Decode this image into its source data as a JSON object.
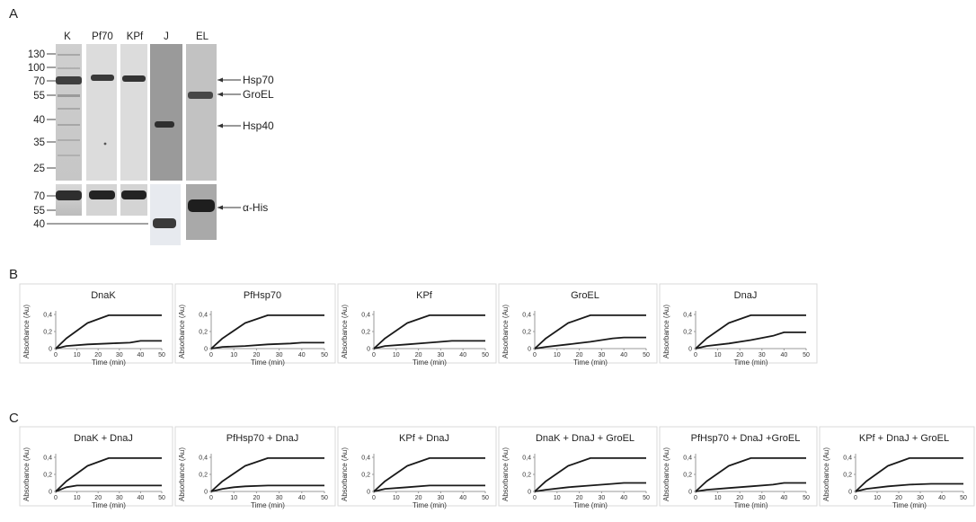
{
  "panels": {
    "a": "A",
    "b": "B",
    "c": "C"
  },
  "gel": {
    "lanes": [
      "K",
      "Pf70",
      "KPf",
      "J",
      "EL"
    ],
    "mw_markers": [
      "130",
      "100",
      "70",
      "55",
      "40",
      "35",
      "25"
    ],
    "blot_markers": [
      "70",
      "55",
      "40"
    ],
    "annotations": [
      "Hsp70",
      "GroEL",
      "Hsp40",
      "α-His"
    ]
  },
  "chart_data": [
    {
      "type": "line",
      "title": "DnaK",
      "xlabel": "Time (min)",
      "ylabel": "Absorbance (Au)",
      "xlim": [
        0,
        50
      ],
      "ylim": [
        0,
        0.4
      ],
      "xticks": [
        "0",
        "10",
        "20",
        "30",
        "40",
        "50"
      ],
      "yticks": [
        "0",
        "0,2",
        "0,4"
      ],
      "series": [
        {
          "x": [
            0,
            5,
            15,
            25,
            35,
            40,
            50
          ],
          "y": [
            0,
            0.12,
            0.3,
            0.39,
            0.39,
            0.39,
            0.39
          ]
        },
        {
          "x": [
            0,
            5,
            15,
            25,
            35,
            40,
            50
          ],
          "y": [
            0,
            0.03,
            0.05,
            0.06,
            0.07,
            0.09,
            0.09
          ]
        }
      ]
    },
    {
      "type": "line",
      "title": "PfHsp70",
      "xlabel": "Time (min)",
      "ylabel": "Absorbance (Au)",
      "xlim": [
        0,
        50
      ],
      "ylim": [
        0,
        0.4
      ],
      "xticks": [
        "0",
        "10",
        "20",
        "30",
        "40",
        "50"
      ],
      "yticks": [
        "0",
        "0,2",
        "0,4"
      ],
      "series": [
        {
          "x": [
            0,
            5,
            15,
            25,
            35,
            40,
            50
          ],
          "y": [
            0,
            0.12,
            0.3,
            0.39,
            0.39,
            0.39,
            0.39
          ]
        },
        {
          "x": [
            0,
            5,
            15,
            25,
            35,
            40,
            50
          ],
          "y": [
            0,
            0.02,
            0.03,
            0.05,
            0.06,
            0.07,
            0.07
          ]
        }
      ]
    },
    {
      "type": "line",
      "title": "KPf",
      "xlabel": "Time (min)",
      "ylabel": "Absorbance (Au)",
      "xlim": [
        0,
        50
      ],
      "ylim": [
        0,
        0.4
      ],
      "xticks": [
        "0",
        "10",
        "20",
        "30",
        "40",
        "50"
      ],
      "yticks": [
        "0",
        "0,2",
        "0,4"
      ],
      "series": [
        {
          "x": [
            0,
            5,
            15,
            25,
            35,
            40,
            50
          ],
          "y": [
            0,
            0.12,
            0.3,
            0.39,
            0.39,
            0.39,
            0.39
          ]
        },
        {
          "x": [
            0,
            5,
            15,
            25,
            35,
            40,
            50
          ],
          "y": [
            0,
            0.03,
            0.05,
            0.07,
            0.09,
            0.09,
            0.09
          ]
        }
      ]
    },
    {
      "type": "line",
      "title": "GroEL",
      "xlabel": "Time (min)",
      "ylabel": "Absorbance (Au)",
      "xlim": [
        0,
        50
      ],
      "ylim": [
        0,
        0.4
      ],
      "xticks": [
        "0",
        "10",
        "20",
        "30",
        "40",
        "50"
      ],
      "yticks": [
        "0",
        "0,2",
        "0,4"
      ],
      "series": [
        {
          "x": [
            0,
            5,
            15,
            25,
            35,
            40,
            50
          ],
          "y": [
            0,
            0.12,
            0.3,
            0.39,
            0.39,
            0.39,
            0.39
          ]
        },
        {
          "x": [
            0,
            5,
            15,
            25,
            35,
            40,
            50
          ],
          "y": [
            0,
            0.02,
            0.05,
            0.08,
            0.12,
            0.13,
            0.13
          ]
        }
      ]
    },
    {
      "type": "line",
      "title": "DnaJ",
      "xlabel": "Time (min)",
      "ylabel": "Absorbance (Au)",
      "xlim": [
        0,
        50
      ],
      "ylim": [
        0,
        0.4
      ],
      "xticks": [
        "0",
        "10",
        "20",
        "30",
        "40",
        "50"
      ],
      "yticks": [
        "0",
        "0,2",
        "0,4"
      ],
      "series": [
        {
          "x": [
            0,
            5,
            15,
            25,
            35,
            40,
            50
          ],
          "y": [
            0,
            0.12,
            0.3,
            0.39,
            0.39,
            0.39,
            0.39
          ]
        },
        {
          "x": [
            0,
            5,
            15,
            25,
            35,
            40,
            50
          ],
          "y": [
            0,
            0.03,
            0.06,
            0.1,
            0.15,
            0.19,
            0.19
          ]
        }
      ]
    },
    {
      "type": "line",
      "title": "DnaK + DnaJ",
      "xlabel": "Time (min)",
      "ylabel": "Absorbance (Au)",
      "xlim": [
        0,
        50
      ],
      "ylim": [
        0,
        0.4
      ],
      "xticks": [
        "0",
        "10",
        "20",
        "30",
        "40",
        "50"
      ],
      "yticks": [
        "0",
        "0,2",
        "0,4"
      ],
      "series": [
        {
          "x": [
            0,
            5,
            15,
            25,
            35,
            40,
            50
          ],
          "y": [
            0,
            0.12,
            0.3,
            0.39,
            0.39,
            0.39,
            0.39
          ]
        },
        {
          "x": [
            0,
            5,
            10,
            15,
            25,
            35,
            40,
            50
          ],
          "y": [
            0,
            0.05,
            0.07,
            0.07,
            0.07,
            0.07,
            0.07,
            0.07
          ]
        }
      ]
    },
    {
      "type": "line",
      "title": "PfHsp70 + DnaJ",
      "xlabel": "Time (min)",
      "ylabel": "Absorbance (Au)",
      "xlim": [
        0,
        50
      ],
      "ylim": [
        0,
        0.4
      ],
      "xticks": [
        "0",
        "10",
        "20",
        "30",
        "40",
        "50"
      ],
      "yticks": [
        "0",
        "0,2",
        "0,4"
      ],
      "series": [
        {
          "x": [
            0,
            5,
            15,
            25,
            35,
            40,
            50
          ],
          "y": [
            0,
            0.12,
            0.3,
            0.39,
            0.39,
            0.39,
            0.39
          ]
        },
        {
          "x": [
            0,
            5,
            10,
            15,
            25,
            35,
            40,
            50
          ],
          "y": [
            0,
            0.03,
            0.05,
            0.06,
            0.07,
            0.07,
            0.07,
            0.07
          ]
        }
      ]
    },
    {
      "type": "line",
      "title": "KPf + DnaJ",
      "xlabel": "Time (min)",
      "ylabel": "Absorbance (Au)",
      "xlim": [
        0,
        50
      ],
      "ylim": [
        0,
        0.4
      ],
      "xticks": [
        "0",
        "10",
        "20",
        "30",
        "40",
        "50"
      ],
      "yticks": [
        "0",
        "0,2",
        "0,4"
      ],
      "series": [
        {
          "x": [
            0,
            5,
            15,
            25,
            35,
            40,
            50
          ],
          "y": [
            0,
            0.12,
            0.3,
            0.39,
            0.39,
            0.39,
            0.39
          ]
        },
        {
          "x": [
            0,
            5,
            15,
            25,
            35,
            40,
            50
          ],
          "y": [
            0,
            0.03,
            0.05,
            0.07,
            0.07,
            0.07,
            0.07
          ]
        }
      ]
    },
    {
      "type": "line",
      "title": "DnaK + DnaJ + GroEL",
      "xlabel": "Time (min)",
      "ylabel": "Absorbance (Au)",
      "xlim": [
        0,
        50
      ],
      "ylim": [
        0,
        0.4
      ],
      "xticks": [
        "0",
        "10",
        "20",
        "30",
        "40",
        "50"
      ],
      "yticks": [
        "0",
        "0,2",
        "0,4"
      ],
      "series": [
        {
          "x": [
            0,
            5,
            15,
            25,
            35,
            40,
            50
          ],
          "y": [
            0,
            0.12,
            0.3,
            0.39,
            0.39,
            0.39,
            0.39
          ]
        },
        {
          "x": [
            0,
            5,
            15,
            25,
            35,
            40,
            50
          ],
          "y": [
            0,
            0.02,
            0.05,
            0.07,
            0.09,
            0.1,
            0.1
          ]
        }
      ]
    },
    {
      "type": "line",
      "title": "PfHsp70 + DnaJ +GroEL",
      "xlabel": "Time (min)",
      "ylabel": "Absorbance (Au)",
      "xlim": [
        0,
        50
      ],
      "ylim": [
        0,
        0.4
      ],
      "xticks": [
        "0",
        "10",
        "20",
        "30",
        "40",
        "50"
      ],
      "yticks": [
        "0",
        "0,2",
        "0,4"
      ],
      "series": [
        {
          "x": [
            0,
            5,
            15,
            25,
            35,
            40,
            50
          ],
          "y": [
            0,
            0.12,
            0.3,
            0.39,
            0.39,
            0.39,
            0.39
          ]
        },
        {
          "x": [
            0,
            5,
            15,
            25,
            35,
            40,
            50
          ],
          "y": [
            0,
            0.02,
            0.04,
            0.06,
            0.08,
            0.1,
            0.1
          ]
        }
      ]
    },
    {
      "type": "line",
      "title": "KPf + DnaJ + GroEL",
      "xlabel": "Time (min)",
      "ylabel": "Absorbance (Au)",
      "xlim": [
        0,
        50
      ],
      "ylim": [
        0,
        0.4
      ],
      "xticks": [
        "0",
        "10",
        "20",
        "30",
        "40",
        "50"
      ],
      "yticks": [
        "0",
        "0,2",
        "0,4"
      ],
      "series": [
        {
          "x": [
            0,
            5,
            15,
            25,
            35,
            40,
            50
          ],
          "y": [
            0,
            0.12,
            0.3,
            0.39,
            0.39,
            0.39,
            0.39
          ]
        },
        {
          "x": [
            0,
            5,
            15,
            25,
            35,
            40,
            50
          ],
          "y": [
            0,
            0.03,
            0.06,
            0.08,
            0.09,
            0.09,
            0.09
          ]
        }
      ]
    }
  ]
}
